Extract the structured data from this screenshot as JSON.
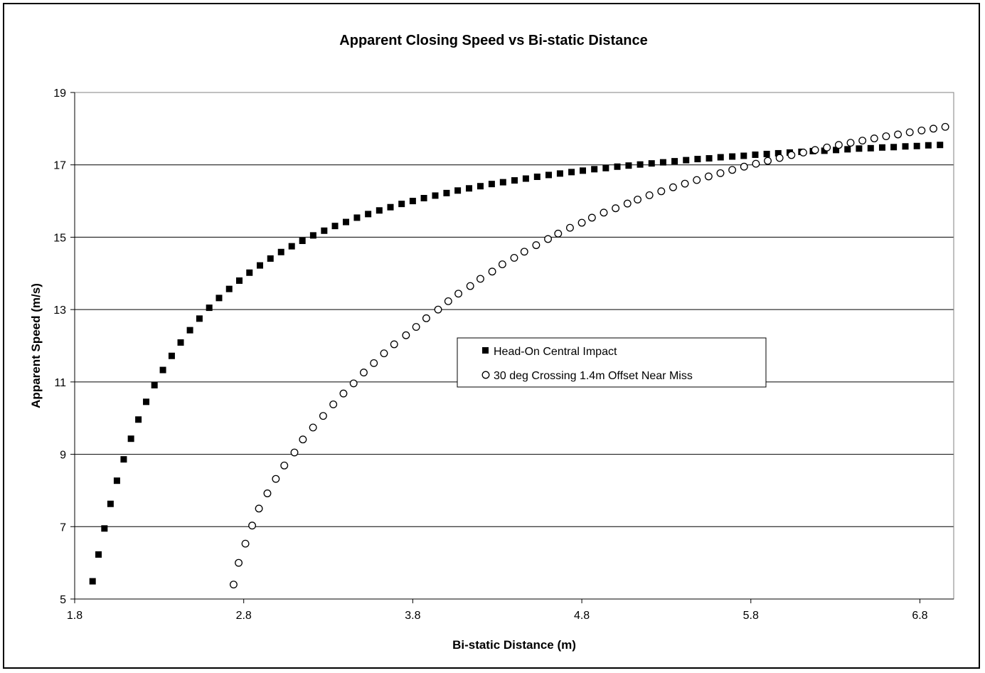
{
  "chart_data": {
    "type": "scatter",
    "title": "Apparent  Closing Speed vs Bi-static Distance",
    "xlabel": "Bi-static Distance (m)",
    "ylabel": "Apparent Speed (m/s)",
    "xlim": [
      1.8,
      7.0
    ],
    "ylim": [
      5,
      19
    ],
    "xticks": [
      1.8,
      2.8,
      3.8,
      4.8,
      5.8,
      6.8
    ],
    "xtick_labels": [
      "1.8",
      "2.8",
      "3.8",
      "4.8",
      "5.8",
      "6.8"
    ],
    "yticks": [
      5,
      7,
      9,
      11,
      13,
      15,
      17,
      19
    ],
    "ytick_labels": [
      "5",
      "7",
      "9",
      "11",
      "13",
      "15",
      "17",
      "19"
    ],
    "grid": "horizontal major gridlines",
    "legend_position": "center-right",
    "series": [
      {
        "name": "Head-On Central Impact",
        "marker": "filled-square",
        "color": "#000000",
        "x": [
          1.906,
          1.941,
          1.976,
          2.012,
          2.05,
          2.09,
          2.133,
          2.177,
          2.223,
          2.272,
          2.322,
          2.374,
          2.427,
          2.482,
          2.538,
          2.596,
          2.654,
          2.714,
          2.774,
          2.834,
          2.896,
          2.958,
          3.021,
          3.084,
          3.147,
          3.211,
          3.276,
          3.34,
          3.405,
          3.47,
          3.536,
          3.602,
          3.668,
          3.734,
          3.8,
          3.866,
          3.933,
          4.0,
          4.066,
          4.133,
          4.2,
          4.267,
          4.334,
          4.402,
          4.469,
          4.536,
          4.604,
          4.671,
          4.739,
          4.806,
          4.874,
          4.942,
          5.01,
          5.077,
          5.145,
          5.213,
          5.281,
          5.349,
          5.417,
          5.485,
          5.553,
          5.621,
          5.69,
          5.758,
          5.826,
          5.894,
          5.962,
          6.03,
          6.099,
          6.167,
          6.235,
          6.304,
          6.372,
          6.44,
          6.509,
          6.577,
          6.645,
          6.714,
          6.782,
          6.85,
          6.919
        ],
        "y": [
          5.49,
          6.23,
          6.95,
          7.63,
          8.27,
          8.86,
          9.43,
          9.96,
          10.45,
          10.91,
          11.33,
          11.72,
          12.09,
          12.43,
          12.75,
          13.05,
          13.32,
          13.57,
          13.8,
          14.02,
          14.22,
          14.41,
          14.59,
          14.75,
          14.9,
          15.05,
          15.18,
          15.31,
          15.42,
          15.54,
          15.64,
          15.74,
          15.83,
          15.92,
          16.0,
          16.08,
          16.15,
          16.22,
          16.29,
          16.35,
          16.41,
          16.47,
          16.52,
          16.57,
          16.62,
          16.67,
          16.72,
          16.76,
          16.8,
          16.84,
          16.88,
          16.91,
          16.95,
          16.98,
          17.01,
          17.04,
          17.07,
          17.1,
          17.13,
          17.16,
          17.18,
          17.21,
          17.23,
          17.25,
          17.28,
          17.3,
          17.32,
          17.34,
          17.36,
          17.38,
          17.39,
          17.41,
          17.43,
          17.45,
          17.46,
          17.48,
          17.49,
          17.51,
          17.52,
          17.54,
          17.55
        ]
      },
      {
        "name": "30 deg Crossing 1.4m Offset Near Miss",
        "marker": "open-circle",
        "color": "#000000",
        "x": [
          2.74,
          2.77,
          2.81,
          2.85,
          2.89,
          2.94,
          2.99,
          3.04,
          3.1,
          3.15,
          3.21,
          3.27,
          3.33,
          3.39,
          3.45,
          3.51,
          3.57,
          3.63,
          3.69,
          3.76,
          3.82,
          3.88,
          3.95,
          4.01,
          4.07,
          4.14,
          4.2,
          4.27,
          4.33,
          4.4,
          4.46,
          4.53,
          4.6,
          4.66,
          4.73,
          4.8,
          4.86,
          4.93,
          5.0,
          5.07,
          5.13,
          5.2,
          5.27,
          5.34,
          5.41,
          5.48,
          5.55,
          5.62,
          5.69,
          5.76,
          5.83,
          5.9,
          5.97,
          6.04,
          6.11,
          6.18,
          6.25,
          6.32,
          6.39,
          6.46,
          6.53,
          6.6,
          6.67,
          6.74,
          6.81,
          6.88,
          6.95
        ],
        "y": [
          5.4,
          6.0,
          6.53,
          7.03,
          7.5,
          7.92,
          8.32,
          8.69,
          9.05,
          9.41,
          9.74,
          10.06,
          10.38,
          10.68,
          10.96,
          11.26,
          11.52,
          11.79,
          12.04,
          12.29,
          12.52,
          12.76,
          13.0,
          13.23,
          13.44,
          13.65,
          13.85,
          14.05,
          14.25,
          14.43,
          14.6,
          14.78,
          14.95,
          15.1,
          15.26,
          15.4,
          15.54,
          15.68,
          15.8,
          15.93,
          16.04,
          16.16,
          16.27,
          16.38,
          16.48,
          16.58,
          16.68,
          16.77,
          16.86,
          16.95,
          17.03,
          17.11,
          17.19,
          17.27,
          17.34,
          17.41,
          17.48,
          17.55,
          17.61,
          17.67,
          17.73,
          17.79,
          17.84,
          17.9,
          17.95,
          18.0,
          18.05
        ]
      }
    ]
  }
}
